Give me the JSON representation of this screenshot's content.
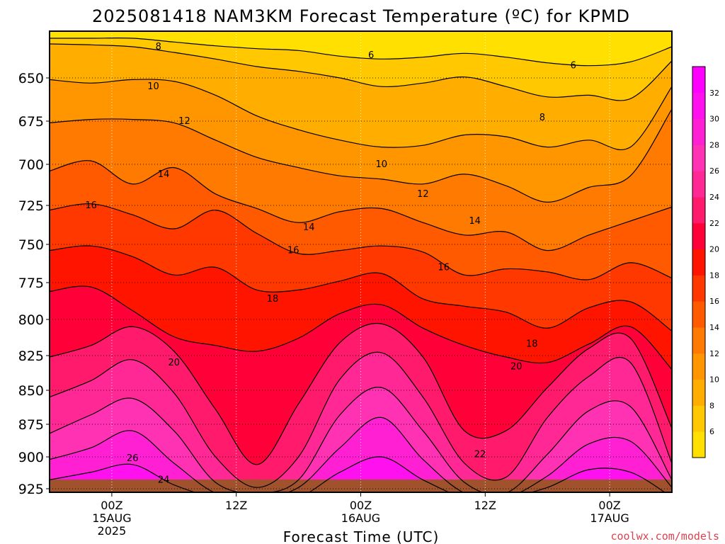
{
  "chart_data": {
    "type": "contour",
    "title": "2025081418 NAM3KM Forecast Temperature (ºC) for KPMD",
    "xlabel": "Forecast Time (UTC)",
    "ylabel": "",
    "y_ticks": [
      650,
      675,
      700,
      725,
      750,
      775,
      800,
      825,
      850,
      875,
      900,
      925
    ],
    "x_ticks": [
      {
        "hour": 6,
        "lines": [
          "00Z",
          "15AUG",
          "2025"
        ]
      },
      {
        "hour": 18,
        "lines": [
          "12Z",
          "",
          ""
        ]
      },
      {
        "hour": 30,
        "lines": [
          "00Z",
          "16AUG",
          ""
        ]
      },
      {
        "hour": 42,
        "lines": [
          "12Z",
          "",
          ""
        ]
      },
      {
        "hour": 54,
        "lines": [
          "00Z",
          "17AUG",
          ""
        ]
      }
    ],
    "x_range_hours": [
      0,
      60
    ],
    "y_range_hpa": [
      [
        608,
        0
      ],
      [
        650,
        56
      ],
      [
        675,
        117
      ],
      [
        700,
        178
      ],
      [
        725,
        236
      ],
      [
        750,
        291
      ],
      [
        775,
        345
      ],
      [
        800,
        397
      ],
      [
        825,
        448
      ],
      [
        850,
        497
      ],
      [
        875,
        545
      ],
      [
        900,
        591
      ],
      [
        925,
        636
      ],
      [
        927,
        648
      ]
    ],
    "levels": [
      6,
      8,
      10,
      12,
      14,
      16,
      18,
      20,
      22,
      24,
      26,
      28,
      30,
      32
    ],
    "colorbar": {
      "labels": [
        6,
        8,
        10,
        12,
        14,
        16,
        18,
        20,
        22,
        24,
        26,
        28,
        30,
        32
      ],
      "colors": [
        "#ffe000",
        "#ffc800",
        "#ffae00",
        "#ff9600",
        "#ff7a00",
        "#ff5a00",
        "#ff3800",
        "#ff1400",
        "#ff0038",
        "#ff1a6b",
        "#ff2894",
        "#ff32b4",
        "#ff20d4",
        "#ff10ef",
        "#ff00ff"
      ]
    },
    "contours": [
      {
        "level": 6,
        "hours": [
          0,
          4,
          8,
          12,
          16,
          20,
          24,
          28,
          32,
          36,
          40,
          44,
          48,
          52,
          56,
          60
        ],
        "p": [
          608,
          608,
          608,
          612,
          616,
          619,
          621,
          627,
          630,
          628,
          624,
          628,
          634,
          637,
          633,
          617
        ]
      },
      {
        "level": 8,
        "hours": [
          0,
          4,
          8,
          12,
          16,
          20,
          24,
          28,
          32,
          36,
          40,
          44,
          48,
          52,
          56,
          60
        ],
        "p": [
          614,
          615,
          617,
          623,
          630,
          638,
          643,
          650,
          655,
          653,
          649,
          655,
          661,
          660,
          662,
          632
        ]
      },
      {
        "level": 10,
        "hours": [
          0,
          4,
          8,
          12,
          16,
          20,
          24,
          28,
          32,
          36,
          40,
          44,
          48,
          52,
          56,
          60
        ],
        "p": [
          651,
          653,
          651,
          652,
          660,
          672,
          680,
          686,
          690,
          689,
          683,
          684,
          690,
          686,
          690,
          655
        ]
      },
      {
        "level": 12,
        "hours": [
          0,
          4,
          8,
          12,
          16,
          20,
          24,
          28,
          32,
          36,
          40,
          44,
          48,
          52,
          56,
          60
        ],
        "p": [
          676,
          674,
          674,
          676,
          686,
          696,
          702,
          707,
          709,
          712,
          706,
          713,
          723,
          714,
          707,
          668
        ]
      },
      {
        "level": 14,
        "hours": [
          0,
          4,
          8,
          12,
          16,
          20,
          24,
          28,
          32,
          36,
          40,
          44,
          48,
          52,
          56,
          60
        ],
        "p": [
          704,
          698,
          712,
          702,
          718,
          727,
          736,
          729,
          727,
          736,
          744,
          742,
          754,
          744,
          735,
          726
        ]
      },
      {
        "level": 16,
        "hours": [
          0,
          4,
          8,
          12,
          16,
          20,
          24,
          28,
          32,
          36,
          40,
          44,
          48,
          52,
          56,
          60
        ],
        "p": [
          728,
          724,
          731,
          740,
          728,
          743,
          756,
          754,
          751,
          755,
          770,
          766,
          768,
          773,
          762,
          772
        ]
      },
      {
        "level": 18,
        "hours": [
          0,
          4,
          8,
          12,
          16,
          20,
          24,
          28,
          32,
          36,
          40,
          44,
          48,
          52,
          56,
          60
        ],
        "p": [
          754,
          751,
          758,
          770,
          765,
          780,
          780,
          774,
          769,
          786,
          791,
          795,
          806,
          792,
          788,
          808
        ]
      },
      {
        "level": 20,
        "hours": [
          0,
          4,
          8,
          12,
          16,
          20,
          24,
          28,
          32,
          36,
          40,
          44,
          48,
          52,
          56,
          60
        ],
        "p": [
          781,
          778,
          794,
          812,
          818,
          822,
          813,
          796,
          790,
          806,
          818,
          826,
          830,
          817,
          805,
          835
        ]
      },
      {
        "level": 22,
        "hours": [
          0,
          4,
          8,
          12,
          16,
          20,
          24,
          28,
          32,
          36,
          40,
          44,
          48,
          52,
          56,
          60
        ],
        "p": [
          826,
          818,
          805,
          822,
          864,
          906,
          860,
          816,
          803,
          826,
          880,
          880,
          848,
          820,
          813,
          878
        ]
      },
      {
        "level": 24,
        "hours": [
          0,
          4,
          8,
          12,
          16,
          20,
          24,
          28,
          32,
          36,
          40,
          44,
          48,
          52,
          56,
          60
        ],
        "p": [
          855,
          843,
          828,
          852,
          900,
          924,
          900,
          842,
          823,
          855,
          905,
          916,
          870,
          840,
          830,
          905
        ]
      },
      {
        "level": 26,
        "hours": [
          0,
          4,
          8,
          12,
          16,
          20,
          24,
          28,
          32,
          36,
          40,
          44,
          48,
          52,
          56,
          60
        ],
        "p": [
          882,
          868,
          856,
          880,
          920,
          926,
          918,
          868,
          848,
          880,
          920,
          926,
          898,
          865,
          862,
          918
        ]
      },
      {
        "level": 28,
        "hours": [
          0,
          4,
          8,
          12,
          16,
          20,
          24,
          28,
          32,
          36,
          40,
          44,
          48,
          52,
          56,
          60
        ],
        "p": [
          902,
          893,
          880,
          905,
          926,
          927,
          924,
          893,
          870,
          902,
          926,
          927,
          915,
          890,
          888,
          924
        ]
      },
      {
        "level": 30,
        "hours": [
          0,
          4,
          8,
          12,
          16,
          20,
          24,
          28,
          32,
          36,
          40,
          44,
          48,
          52,
          56,
          60
        ],
        "p": [
          918,
          912,
          906,
          922,
          927,
          927,
          927,
          912,
          900,
          918,
          927,
          927,
          924,
          910,
          912,
          927
        ]
      }
    ],
    "contour_labels": [
      {
        "text": "8",
        "hour": 10.5,
        "p": 617
      },
      {
        "text": "6",
        "hour": 31.0,
        "p": 626
      },
      {
        "text": "6",
        "hour": 50.5,
        "p": 637
      },
      {
        "text": "10",
        "hour": 10.0,
        "p": 655
      },
      {
        "text": "8",
        "hour": 47.5,
        "p": 673
      },
      {
        "text": "12",
        "hour": 13.0,
        "p": 675
      },
      {
        "text": "10",
        "hour": 32.0,
        "p": 700
      },
      {
        "text": "14",
        "hour": 11.0,
        "p": 706
      },
      {
        "text": "12",
        "hour": 36.0,
        "p": 718
      },
      {
        "text": "16",
        "hour": 4.0,
        "p": 725
      },
      {
        "text": "14",
        "hour": 25.0,
        "p": 739
      },
      {
        "text": "14",
        "hour": 41.0,
        "p": 735
      },
      {
        "text": "16",
        "hour": 23.5,
        "p": 754
      },
      {
        "text": "16",
        "hour": 38.0,
        "p": 765
      },
      {
        "text": "18",
        "hour": 21.5,
        "p": 786
      },
      {
        "text": "18",
        "hour": 46.5,
        "p": 817
      },
      {
        "text": "20",
        "hour": 12.0,
        "p": 830
      },
      {
        "text": "20",
        "hour": 45.0,
        "p": 833
      },
      {
        "text": "22",
        "hour": 41.5,
        "p": 898
      },
      {
        "text": "26",
        "hour": 8.0,
        "p": 901
      },
      {
        "text": "24",
        "hour": 11.0,
        "p": 918
      }
    ],
    "terrain_color": "#a0522d",
    "grid": true
  },
  "credit": "coolwx.com/models"
}
